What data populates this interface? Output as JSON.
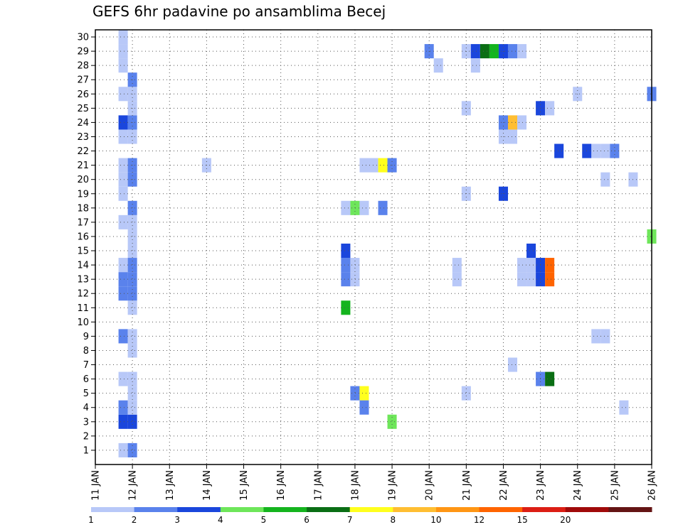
{
  "chart_data": {
    "type": "heatmap",
    "title": "GEFS 6hr padavine po ansamblima Becej",
    "x_ticks": [
      "11 JAN",
      "12 JAN",
      "13 JAN",
      "14 JAN",
      "15 JAN",
      "16 JAN",
      "17 JAN",
      "18 JAN",
      "19 JAN",
      "20 JAN",
      "21 JAN",
      "22 JAN",
      "23 JAN",
      "24 JAN",
      "25 JAN",
      "26 JAN"
    ],
    "y_ticks": [
      "1",
      "2",
      "3",
      "4",
      "5",
      "6",
      "7",
      "8",
      "9",
      "10",
      "11",
      "12",
      "13",
      "14",
      "15",
      "16",
      "17",
      "18",
      "19",
      "20",
      "21",
      "22",
      "23",
      "24",
      "25",
      "26",
      "27",
      "28",
      "29",
      "30"
    ],
    "ylim": [
      0,
      30
    ],
    "grid": true,
    "colorbar": {
      "labels": [
        "1",
        "2",
        "3",
        "4",
        "5",
        "6",
        "7",
        "8",
        "10",
        "12",
        "15",
        "20"
      ],
      "colors": [
        "#b8c8f8",
        "#5a82ec",
        "#1a46dc",
        "#6ee65a",
        "#14b41e",
        "#0a6e14",
        "#ffff1e",
        "#ffbe32",
        "#ff9614",
        "#ff6400",
        "#dc1e14",
        "#a00a0a",
        "#641414"
      ]
    },
    "cells": [
      {
        "time": "11 JAN 18Z",
        "member": 1,
        "value": 1
      },
      {
        "time": "12 JAN 00Z",
        "member": 1,
        "value": 2
      },
      {
        "time": "11 JAN 18Z",
        "member": 3,
        "value": 3
      },
      {
        "time": "12 JAN 00Z",
        "member": 3,
        "value": 3
      },
      {
        "time": "11 JAN 18Z",
        "member": 4,
        "value": 2
      },
      {
        "time": "12 JAN 00Z",
        "member": 4,
        "value": 1
      },
      {
        "time": "12 JAN 00Z",
        "member": 5,
        "value": 1
      },
      {
        "time": "11 JAN 18Z",
        "member": 6,
        "value": 1
      },
      {
        "time": "12 JAN 00Z",
        "member": 6,
        "value": 1
      },
      {
        "time": "12 JAN 00Z",
        "member": 8,
        "value": 1
      },
      {
        "time": "11 JAN 18Z",
        "member": 9,
        "value": 2
      },
      {
        "time": "12 JAN 00Z",
        "member": 9,
        "value": 1
      },
      {
        "time": "12 JAN 00Z",
        "member": 11,
        "value": 1
      },
      {
        "time": "11 JAN 18Z",
        "member": 12,
        "value": 2
      },
      {
        "time": "12 JAN 00Z",
        "member": 12,
        "value": 2
      },
      {
        "time": "11 JAN 18Z",
        "member": 13,
        "value": 2
      },
      {
        "time": "12 JAN 00Z",
        "member": 13,
        "value": 2
      },
      {
        "time": "11 JAN 18Z",
        "member": 14,
        "value": 1
      },
      {
        "time": "12 JAN 00Z",
        "member": 14,
        "value": 2
      },
      {
        "time": "12 JAN 00Z",
        "member": 15,
        "value": 1
      },
      {
        "time": "12 JAN 00Z",
        "member": 16,
        "value": 1
      },
      {
        "time": "11 JAN 18Z",
        "member": 17,
        "value": 1
      },
      {
        "time": "12 JAN 00Z",
        "member": 17,
        "value": 1
      },
      {
        "time": "12 JAN 00Z",
        "member": 18,
        "value": 2
      },
      {
        "time": "11 JAN 18Z",
        "member": 19,
        "value": 1
      },
      {
        "time": "11 JAN 18Z",
        "member": 20,
        "value": 1
      },
      {
        "time": "12 JAN 00Z",
        "member": 20,
        "value": 2
      },
      {
        "time": "11 JAN 18Z",
        "member": 21,
        "value": 1
      },
      {
        "time": "12 JAN 00Z",
        "member": 21,
        "value": 2
      },
      {
        "time": "11 JAN 18Z",
        "member": 23,
        "value": 1
      },
      {
        "time": "12 JAN 00Z",
        "member": 23,
        "value": 1
      },
      {
        "time": "11 JAN 18Z",
        "member": 24,
        "value": 3
      },
      {
        "time": "12 JAN 00Z",
        "member": 24,
        "value": 2
      },
      {
        "time": "12 JAN 00Z",
        "member": 25,
        "value": 1
      },
      {
        "time": "11 JAN 18Z",
        "member": 26,
        "value": 1
      },
      {
        "time": "12 JAN 00Z",
        "member": 26,
        "value": 1
      },
      {
        "time": "12 JAN 00Z",
        "member": 27,
        "value": 2
      },
      {
        "time": "11 JAN 18Z",
        "member": 28,
        "value": 1
      },
      {
        "time": "11 JAN 18Z",
        "member": 29,
        "value": 1
      },
      {
        "time": "11 JAN 18Z",
        "member": 30,
        "value": 1
      },
      {
        "time": "14 JAN 00Z",
        "member": 21,
        "value": 1
      },
      {
        "time": "17 JAN 18Z",
        "member": 11,
        "value": 5
      },
      {
        "time": "17 JAN 18Z",
        "member": 13,
        "value": 2
      },
      {
        "time": "18 JAN 00Z",
        "member": 13,
        "value": 1
      },
      {
        "time": "17 JAN 18Z",
        "member": 14,
        "value": 2
      },
      {
        "time": "18 JAN 00Z",
        "member": 14,
        "value": 1
      },
      {
        "time": "17 JAN 18Z",
        "member": 15,
        "value": 3
      },
      {
        "time": "17 JAN 18Z",
        "member": 18,
        "value": 1
      },
      {
        "time": "18 JAN 00Z",
        "member": 18,
        "value": 4
      },
      {
        "time": "18 JAN 06Z",
        "member": 18,
        "value": 1
      },
      {
        "time": "18 JAN 18Z",
        "member": 18,
        "value": 2
      },
      {
        "time": "18 JAN 00Z",
        "member": 5,
        "value": 2
      },
      {
        "time": "18 JAN 06Z",
        "member": 5,
        "value": 7
      },
      {
        "time": "18 JAN 06Z",
        "member": 4,
        "value": 2
      },
      {
        "time": "19 JAN 00Z",
        "member": 3,
        "value": 4
      },
      {
        "time": "18 JAN 06Z",
        "member": 21,
        "value": 1
      },
      {
        "time": "18 JAN 12Z",
        "member": 21,
        "value": 1
      },
      {
        "time": "18 JAN 18Z",
        "member": 21,
        "value": 7
      },
      {
        "time": "19 JAN 00Z",
        "member": 21,
        "value": 2
      },
      {
        "time": "20 JAN 00Z",
        "member": 29,
        "value": 2
      },
      {
        "time": "20 JAN 06Z",
        "member": 28,
        "value": 1
      },
      {
        "time": "20 JAN 18Z",
        "member": 14,
        "value": 1
      },
      {
        "time": "20 JAN 18Z",
        "member": 13,
        "value": 1
      },
      {
        "time": "21 JAN 00Z",
        "member": 5,
        "value": 1
      },
      {
        "time": "21 JAN 00Z",
        "member": 19,
        "value": 1
      },
      {
        "time": "21 JAN 00Z",
        "member": 25,
        "value": 1
      },
      {
        "time": "21 JAN 00Z",
        "member": 29,
        "value": 1
      },
      {
        "time": "21 JAN 06Z",
        "member": 29,
        "value": 3
      },
      {
        "time": "21 JAN 12Z",
        "member": 29,
        "value": 6
      },
      {
        "time": "21 JAN 18Z",
        "member": 29,
        "value": 5
      },
      {
        "time": "22 JAN 00Z",
        "member": 29,
        "value": 3
      },
      {
        "time": "22 JAN 06Z",
        "member": 29,
        "value": 2
      },
      {
        "time": "22 JAN 12Z",
        "member": 29,
        "value": 1
      },
      {
        "time": "21 JAN 06Z",
        "member": 28,
        "value": 1
      },
      {
        "time": "22 JAN 06Z",
        "member": 7,
        "value": 1
      },
      {
        "time": "22 JAN 00Z",
        "member": 19,
        "value": 3
      },
      {
        "time": "22 JAN 00Z",
        "member": 23,
        "value": 1
      },
      {
        "time": "22 JAN 06Z",
        "member": 23,
        "value": 1
      },
      {
        "time": "22 JAN 00Z",
        "member": 24,
        "value": 2
      },
      {
        "time": "22 JAN 06Z",
        "member": 24,
        "value": 8
      },
      {
        "time": "22 JAN 12Z",
        "member": 24,
        "value": 1
      },
      {
        "time": "22 JAN 12Z",
        "member": 14,
        "value": 1
      },
      {
        "time": "22 JAN 18Z",
        "member": 14,
        "value": 1
      },
      {
        "time": "23 JAN 00Z",
        "member": 14,
        "value": 3
      },
      {
        "time": "23 JAN 06Z",
        "member": 14,
        "value": 10
      },
      {
        "time": "22 JAN 12Z",
        "member": 13,
        "value": 1
      },
      {
        "time": "22 JAN 18Z",
        "member": 13,
        "value": 1
      },
      {
        "time": "23 JAN 00Z",
        "member": 13,
        "value": 3
      },
      {
        "time": "23 JAN 06Z",
        "member": 13,
        "value": 10
      },
      {
        "time": "22 JAN 18Z",
        "member": 15,
        "value": 3
      },
      {
        "time": "23 JAN 00Z",
        "member": 6,
        "value": 2
      },
      {
        "time": "23 JAN 06Z",
        "member": 6,
        "value": 6
      },
      {
        "time": "23 JAN 00Z",
        "member": 25,
        "value": 3
      },
      {
        "time": "23 JAN 06Z",
        "member": 25,
        "value": 1
      },
      {
        "time": "23 JAN 12Z",
        "member": 22,
        "value": 3
      },
      {
        "time": "24 JAN 00Z",
        "member": 26,
        "value": 1
      },
      {
        "time": "24 JAN 06Z",
        "member": 22,
        "value": 3
      },
      {
        "time": "24 JAN 12Z",
        "member": 22,
        "value": 1
      },
      {
        "time": "24 JAN 18Z",
        "member": 22,
        "value": 1
      },
      {
        "time": "25 JAN 00Z",
        "member": 22,
        "value": 2
      },
      {
        "time": "24 JAN 12Z",
        "member": 9,
        "value": 1
      },
      {
        "time": "24 JAN 18Z",
        "member": 9,
        "value": 1
      },
      {
        "time": "24 JAN 18Z",
        "member": 20,
        "value": 1
      },
      {
        "time": "25 JAN 06Z",
        "member": 4,
        "value": 1
      },
      {
        "time": "25 JAN 12Z",
        "member": 20,
        "value": 1
      },
      {
        "time": "26 JAN 00Z",
        "member": 26,
        "value": 2
      },
      {
        "time": "26 JAN 00Z",
        "member": 16,
        "value": 4
      }
    ]
  }
}
